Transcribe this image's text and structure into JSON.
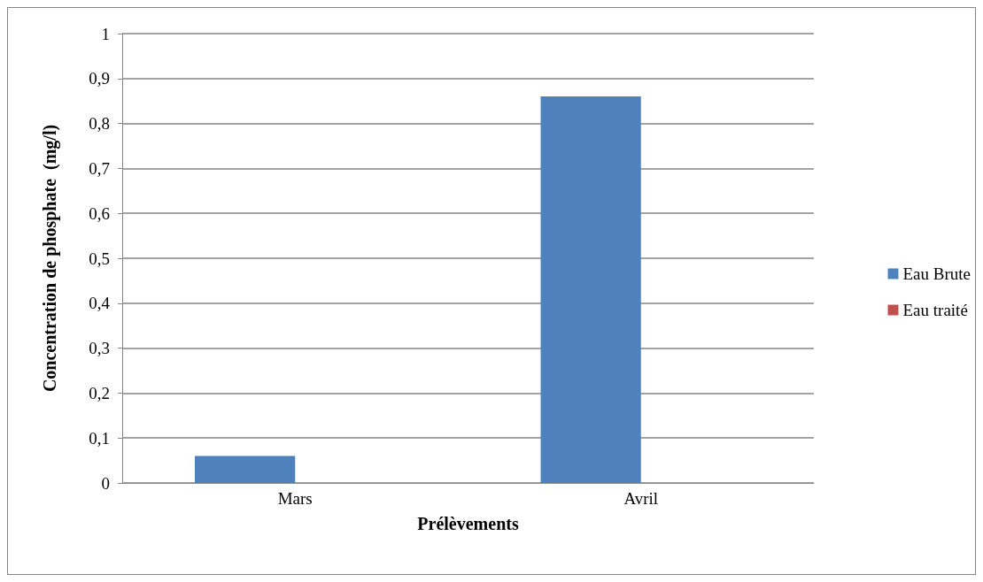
{
  "chart_data": {
    "type": "bar",
    "xlabel": "Prélèvements",
    "ylabel": "Concentration de phosphate  (mg/l)",
    "categories": [
      "Mars",
      "Avril"
    ],
    "series": [
      {
        "name": "Eau Brute",
        "color": "#4f81bd",
        "values": [
          0.06,
          0.86
        ]
      },
      {
        "name": "Eau traité",
        "color": "#c0504d",
        "values": [
          0,
          0
        ]
      }
    ],
    "ylim": [
      0,
      1
    ],
    "yticks": [
      0,
      {
        "value": 0.1,
        "label": "0,1"
      },
      {
        "value": 0.2,
        "label": "0,2"
      },
      {
        "value": 0.3,
        "label": "0,3"
      },
      {
        "value": 0.4,
        "label": "0,4"
      },
      {
        "value": 0.5,
        "label": "0,5"
      },
      {
        "value": 0.6,
        "label": "0,6"
      },
      {
        "value": 0.7,
        "label": "0,7"
      },
      {
        "value": 0.8,
        "label": "0,8"
      },
      {
        "value": 0.9,
        "label": "0,9"
      },
      1
    ],
    "grid": "y",
    "legend": "right"
  }
}
